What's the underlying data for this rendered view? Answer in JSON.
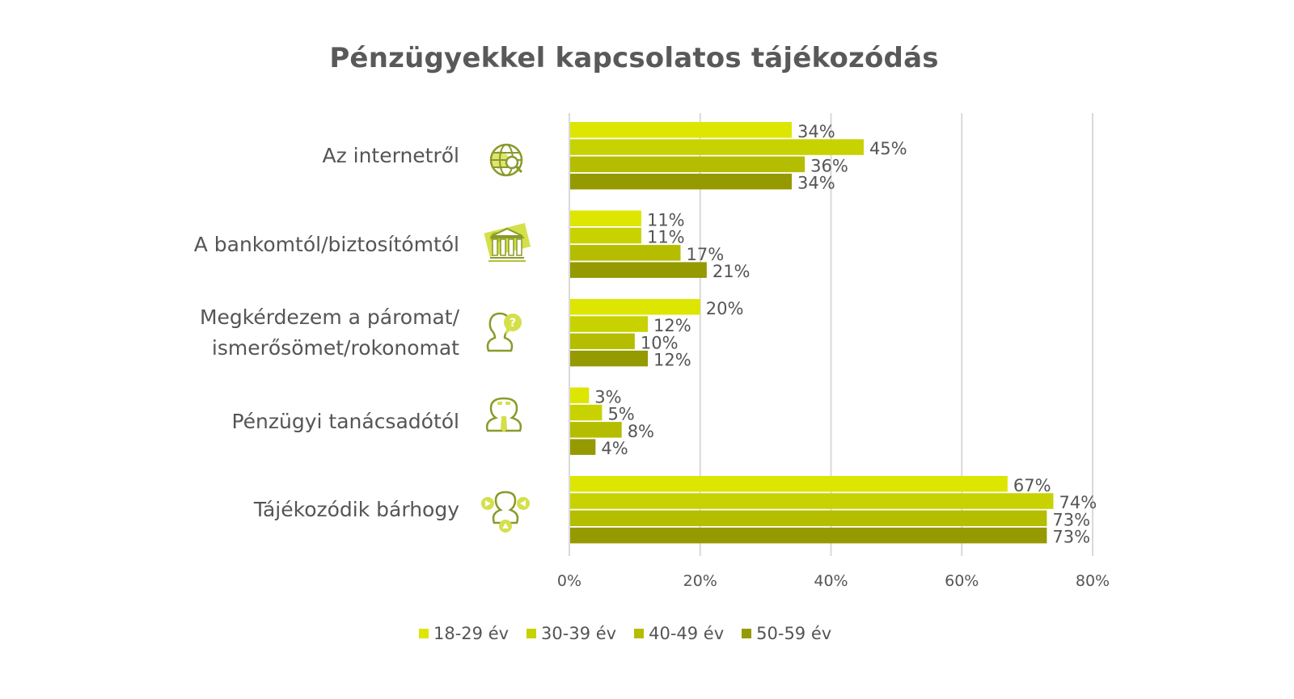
{
  "chart_data": {
    "type": "bar",
    "orientation": "horizontal",
    "title": "Pénzügyekkel kapcsolatos tájékozódás",
    "xlabel": "",
    "ylabel": "",
    "xlim": [
      0,
      80
    ],
    "x_ticks": [
      "0%",
      "20%",
      "40%",
      "60%",
      "80%"
    ],
    "x_tick_values": [
      0,
      20,
      40,
      60,
      80
    ],
    "grid": true,
    "legend_position": "bottom",
    "categories": [
      [
        "Az internetről"
      ],
      [
        "A bankomtól/biztosítómtól"
      ],
      [
        "Megkérdezem a páromat/",
        "ismerősömet/rokonomat"
      ],
      [
        "Pénzügyi tanácsadótól"
      ],
      [
        "Tájékozódik bárhogy"
      ]
    ],
    "category_icons": [
      "globe-search-icon",
      "bank-icon",
      "person-question-icon",
      "advisor-icon",
      "person-arrows-icon"
    ],
    "series": [
      {
        "name": "18-29 év",
        "color": "#dde600",
        "values": [
          34,
          11,
          20,
          3,
          67
        ]
      },
      {
        "name": "30-39 év",
        "color": "#c8d200",
        "values": [
          45,
          11,
          12,
          5,
          74
        ]
      },
      {
        "name": "40-49 év",
        "color": "#b5bd00",
        "values": [
          36,
          17,
          10,
          8,
          73
        ]
      },
      {
        "name": "50-59 év",
        "color": "#949a00",
        "values": [
          34,
          21,
          12,
          4,
          73
        ]
      }
    ],
    "value_suffix": "%"
  },
  "colors": {
    "text": "#555555",
    "grid": "#d9d9d9",
    "icon_stroke": "#8a9a2a",
    "icon_fill": "#d4e04a"
  }
}
